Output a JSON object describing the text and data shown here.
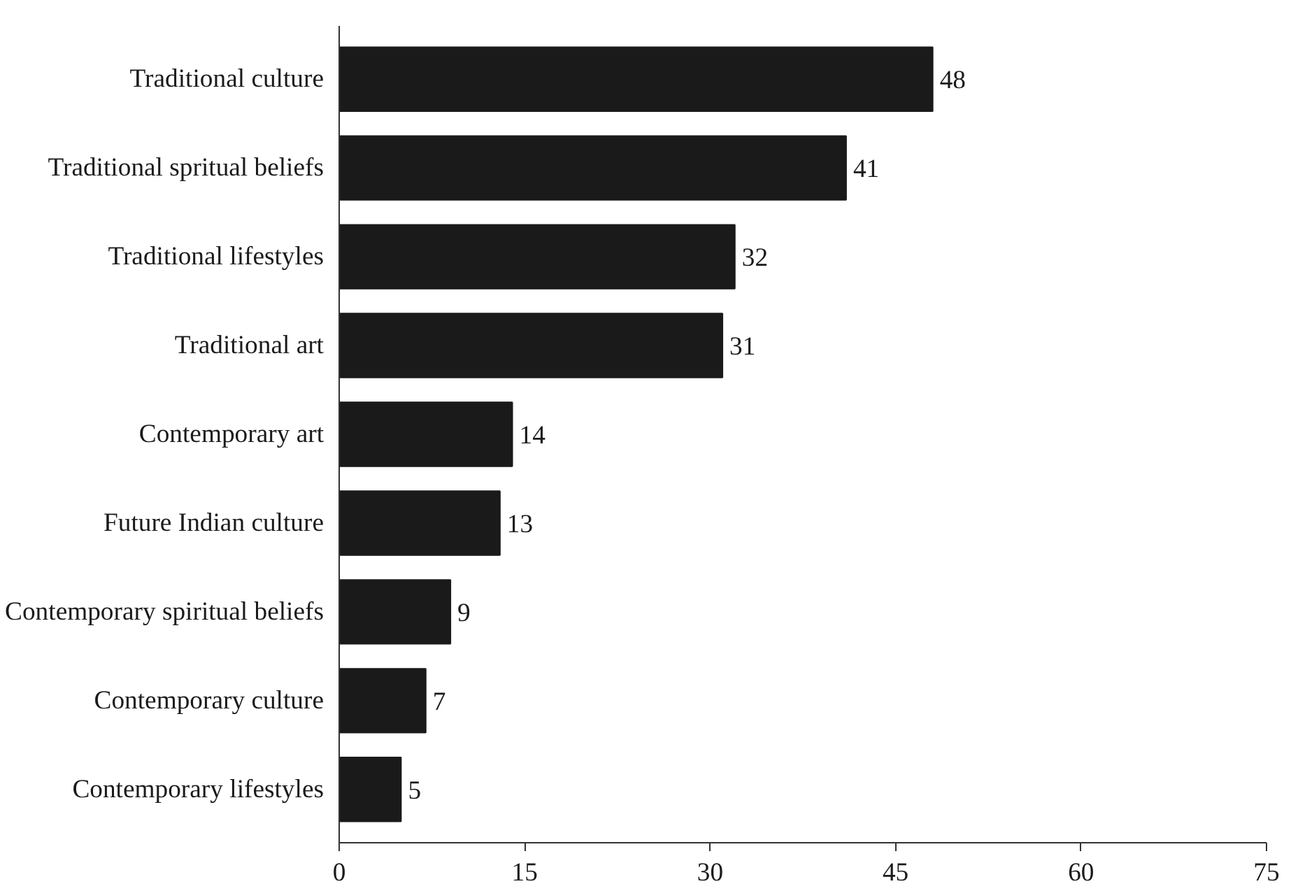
{
  "chart_data": {
    "type": "bar",
    "orientation": "horizontal",
    "categories": [
      "Traditional culture",
      "Traditional spritual beliefs",
      "Traditional lifestyles",
      "Traditional art",
      "Contemporary art",
      "Future Indian culture",
      "Contemporary spiritual beliefs",
      "Contemporary culture",
      "Contemporary lifestyles"
    ],
    "values": [
      48,
      41,
      32,
      31,
      14,
      13,
      9,
      7,
      5
    ],
    "color": "#1a1a1a",
    "xlim": [
      0,
      75
    ],
    "xticks": [
      0,
      15,
      30,
      45,
      60,
      75
    ],
    "data_labels": true,
    "grid": false
  }
}
